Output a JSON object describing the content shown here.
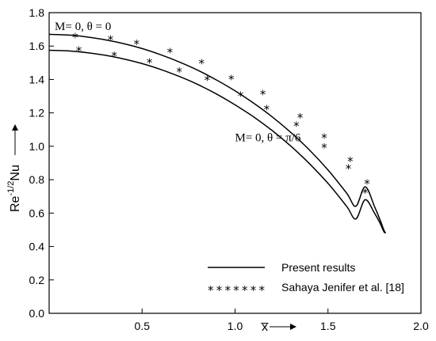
{
  "chart_data": {
    "type": "line",
    "title": "",
    "xlabel": "x̅",
    "ylabel": "Re",
    "ylabel_sup": "-1/2",
    "ylabel_tail": "Nu",
    "xlim": [
      0.0,
      2.0
    ],
    "ylim": [
      0.0,
      1.8
    ],
    "x_ticks": [
      {
        "value": 0.5,
        "label": "0.5"
      },
      {
        "value": 1.0,
        "label": "1.0"
      },
      {
        "value": 1.5,
        "label": "1.5"
      },
      {
        "value": 2.0,
        "label": "2.0"
      }
    ],
    "y_ticks": [
      {
        "value": 0.0,
        "label": "0.0"
      },
      {
        "value": 0.2,
        "label": "0.2"
      },
      {
        "value": 0.4,
        "label": "0.4"
      },
      {
        "value": 0.6,
        "label": "0.6"
      },
      {
        "value": 0.8,
        "label": "0.8"
      },
      {
        "value": 1.0,
        "label": "1.0"
      },
      {
        "value": 1.2,
        "label": "1.2"
      },
      {
        "value": 1.4,
        "label": "1.4"
      },
      {
        "value": 1.6,
        "label": "1.6"
      },
      {
        "value": 1.8,
        "label": "1.8"
      }
    ],
    "grid": false,
    "legend": {
      "position": "bottom-right",
      "entries": [
        {
          "label": "Present results",
          "style": "solid-line"
        },
        {
          "label": "Sahaya Jenifer et al. [18]",
          "style": "star-markers",
          "marker": "*******"
        }
      ]
    },
    "annotations": [
      {
        "text": "M= 0, θ = 0",
        "x": 0.03,
        "y": 1.695
      },
      {
        "text": "M= 0, θ = π/6",
        "x": 1.0,
        "y": 1.03
      }
    ],
    "series": [
      {
        "style": "line",
        "x": [
          0.0,
          0.1,
          0.2,
          0.3,
          0.4,
          0.5,
          0.6,
          0.7,
          0.8,
          0.9,
          1.0,
          1.1,
          1.2,
          1.3,
          1.4,
          1.5,
          1.6,
          1.65,
          1.7,
          1.75,
          1.78,
          1.8,
          1.81
        ],
        "y": [
          1.67,
          1.666,
          1.655,
          1.638,
          1.615,
          1.585,
          1.548,
          1.505,
          1.455,
          1.397,
          1.332,
          1.258,
          1.176,
          1.083,
          0.978,
          0.858,
          0.72,
          0.641,
          0.758,
          0.64,
          0.56,
          0.5,
          0.48
        ]
      },
      {
        "style": "line",
        "x": [
          0.0,
          0.1,
          0.2,
          0.3,
          0.4,
          0.5,
          0.6,
          0.7,
          0.8,
          0.9,
          1.0,
          1.1,
          1.2,
          1.3,
          1.4,
          1.5,
          1.6,
          1.65,
          1.7,
          1.75,
          1.78,
          1.8,
          1.81
        ],
        "y": [
          1.575,
          1.571,
          1.561,
          1.545,
          1.523,
          1.495,
          1.46,
          1.418,
          1.37,
          1.313,
          1.248,
          1.176,
          1.094,
          1.001,
          0.896,
          0.778,
          0.641,
          0.565,
          0.68,
          0.6,
          0.54,
          0.49,
          0.48
        ]
      },
      {
        "style": "markers",
        "x": [
          0.14,
          0.33,
          0.47,
          0.65,
          0.82,
          0.98,
          1.15,
          1.35,
          1.48,
          1.62,
          1.71
        ],
        "y": [
          1.655,
          1.642,
          1.615,
          1.565,
          1.5,
          1.405,
          1.315,
          1.175,
          1.055,
          0.915,
          0.78
        ]
      },
      {
        "style": "markers",
        "x": [
          0.16,
          0.35,
          0.54,
          0.7,
          0.85,
          1.03,
          1.17,
          1.33,
          1.48,
          1.61,
          1.7
        ],
        "y": [
          1.575,
          1.545,
          1.505,
          1.45,
          1.4,
          1.305,
          1.225,
          1.125,
          0.995,
          0.87,
          0.725
        ]
      }
    ]
  }
}
